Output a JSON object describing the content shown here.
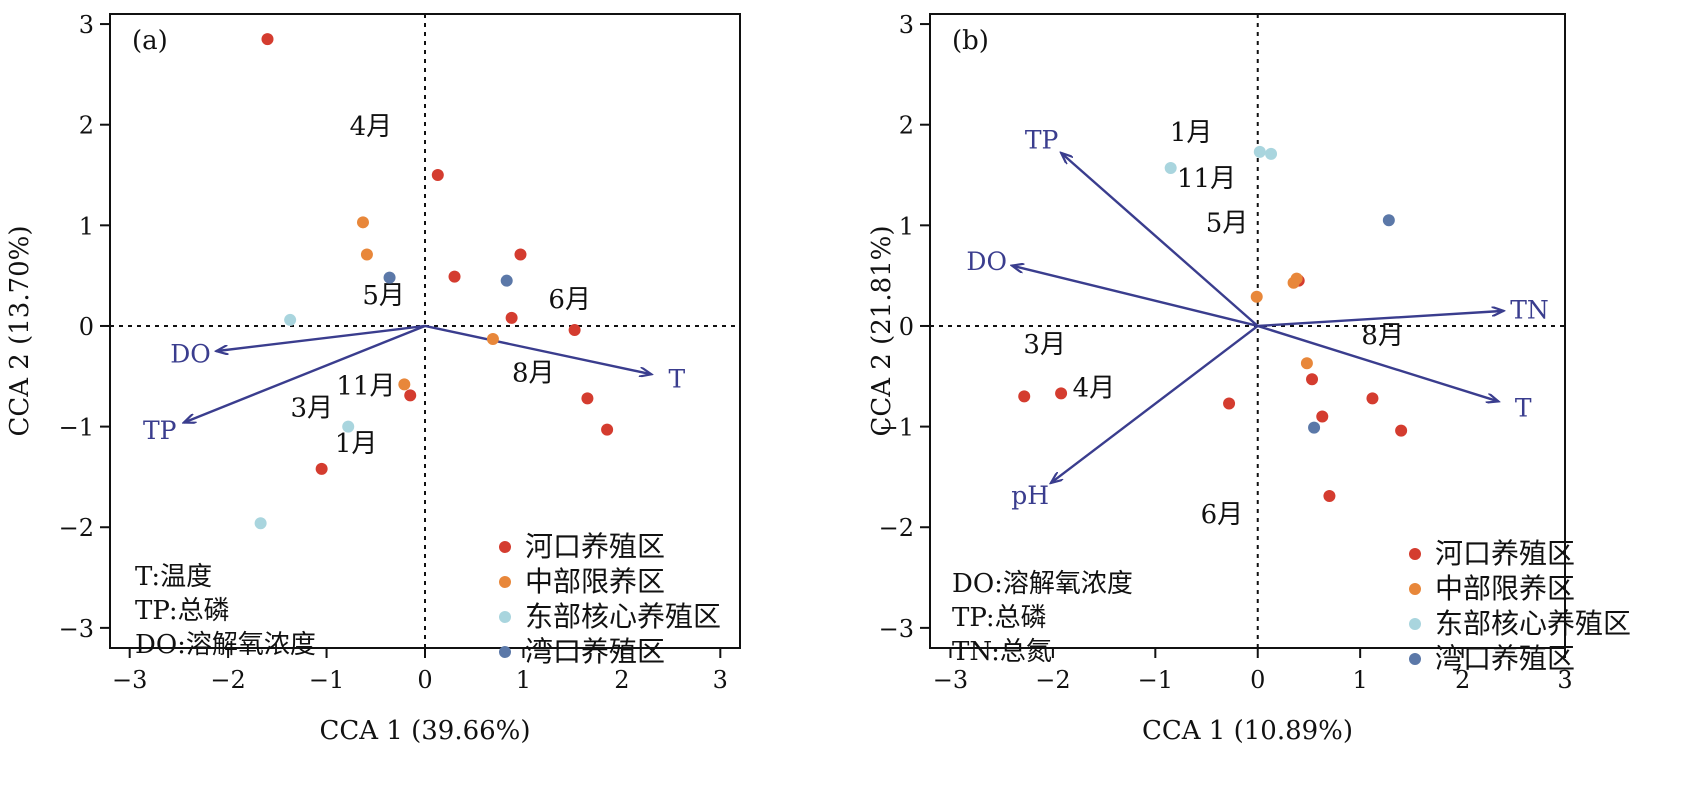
{
  "colors": {
    "河口养殖区": "#d43c2f",
    "中部限养区": "#e8873a",
    "东部核心养殖区": "#a9d5de",
    "湾口养殖区": "#5b78a8",
    "arrow": "#3a3d8e"
  },
  "chart_data": [
    {
      "type": "scatter",
      "panel_label": "(a)",
      "xlabel": "CCA 1 (39.66%)",
      "ylabel": "CCA 2 (13.70%)",
      "xlim": [
        -3.2,
        3.2
      ],
      "ylim": [
        -3.2,
        3.1
      ],
      "xticks": [
        -3,
        -2,
        -1,
        0,
        1,
        2,
        3
      ],
      "yticks": [
        -3,
        -2,
        -1,
        0,
        1,
        2,
        3
      ],
      "tick_labels": [
        "−3",
        "−2",
        "−1",
        "0",
        "1",
        "2",
        "3"
      ],
      "series": [
        {
          "name": "河口养殖区",
          "x": [
            -1.6,
            0.13,
            0.3,
            0.97,
            0.88,
            1.52,
            -0.15,
            1.65,
            1.85,
            -1.05
          ],
          "y": [
            2.85,
            1.5,
            0.49,
            0.71,
            0.08,
            -0.04,
            -0.69,
            -0.72,
            -1.03,
            -1.42
          ]
        },
        {
          "name": "中部限养区",
          "x": [
            -0.63,
            -0.59,
            0.69,
            -0.21
          ],
          "y": [
            1.03,
            0.71,
            -0.13,
            -0.58
          ]
        },
        {
          "name": "东部核心养殖区",
          "x": [
            -1.37,
            -0.78,
            -1.67
          ],
          "y": [
            0.06,
            -1.0,
            -1.96
          ]
        },
        {
          "name": "湾口养殖区",
          "x": [
            -0.36,
            0.83
          ],
          "y": [
            0.48,
            0.45
          ]
        }
      ],
      "vectors": [
        {
          "label": "DO",
          "x": -2.12,
          "y": -0.25
        },
        {
          "label": "TP",
          "x": -2.45,
          "y": -0.96
        },
        {
          "label": "T",
          "x": 2.3,
          "y": -0.48
        }
      ],
      "month_labels": [
        {
          "text": "4月",
          "x": -0.55,
          "y": 1.9
        },
        {
          "text": "5月",
          "x": -0.42,
          "y": 0.22
        },
        {
          "text": "6月",
          "x": 1.47,
          "y": 0.18
        },
        {
          "text": "8月",
          "x": 1.1,
          "y": -0.55
        },
        {
          "text": "11月",
          "x": -0.6,
          "y": -0.68
        },
        {
          "text": "3月",
          "x": -1.15,
          "y": -0.9
        },
        {
          "text": "1月",
          "x": -0.7,
          "y": -1.25
        }
      ],
      "legend": [
        "河口养殖区",
        "中部限养区",
        "东部核心养殖区",
        "湾口养殖区"
      ],
      "notes": [
        "T:温度",
        "TP:总磷",
        "DO:溶解氧浓度"
      ]
    },
    {
      "type": "scatter",
      "panel_label": "(b)",
      "xlabel": "CCA 1 (10.89%)",
      "ylabel": "CCA 2 (21.81%)",
      "xlim": [
        -3.2,
        3.0
      ],
      "ylim": [
        -3.2,
        3.1
      ],
      "xticks": [
        -3,
        -2,
        -1,
        0,
        1,
        2,
        3
      ],
      "yticks": [
        -3,
        -2,
        -1,
        0,
        1,
        2,
        3
      ],
      "tick_labels": [
        "−3",
        "−2",
        "−1",
        "0",
        "1",
        "2",
        "3"
      ],
      "series": [
        {
          "name": "河口养殖区",
          "x": [
            0.4,
            0.53,
            -2.28,
            -1.92,
            -0.28,
            1.12,
            1.4,
            0.63,
            0.7
          ],
          "y": [
            0.45,
            -0.53,
            -0.7,
            -0.67,
            -0.77,
            -0.72,
            -1.04,
            -0.9,
            -1.69
          ]
        },
        {
          "name": "中部限养区",
          "x": [
            0.35,
            0.38,
            -0.01,
            0.48
          ],
          "y": [
            0.43,
            0.47,
            0.29,
            -0.37
          ]
        },
        {
          "name": "东部核心养殖区",
          "x": [
            -0.85,
            0.02,
            0.13
          ],
          "y": [
            1.57,
            1.73,
            1.71
          ]
        },
        {
          "name": "湾口养殖区",
          "x": [
            1.28,
            0.55
          ],
          "y": [
            1.05,
            -1.01
          ]
        }
      ],
      "vectors": [
        {
          "label": "TP",
          "x": -1.92,
          "y": 1.72
        },
        {
          "label": "DO",
          "x": -2.4,
          "y": 0.6
        },
        {
          "label": "TN",
          "x": 2.4,
          "y": 0.15
        },
        {
          "label": "T",
          "x": 2.35,
          "y": -0.75
        },
        {
          "label": "pH",
          "x": -2.02,
          "y": -1.56
        }
      ],
      "month_labels": [
        {
          "text": "1月",
          "x": -0.65,
          "y": 1.84
        },
        {
          "text": "11月",
          "x": -0.5,
          "y": 1.38
        },
        {
          "text": "5月",
          "x": -0.3,
          "y": 0.94
        },
        {
          "text": "3月",
          "x": -2.08,
          "y": -0.27
        },
        {
          "text": "4月",
          "x": -1.6,
          "y": -0.7
        },
        {
          "text": "8月",
          "x": 1.22,
          "y": -0.18
        },
        {
          "text": "6月",
          "x": -0.35,
          "y": -1.96
        }
      ],
      "legend": [
        "河口养殖区",
        "中部限养区",
        "东部核心养殖区",
        "湾口养殖区"
      ],
      "notes": [
        "DO:溶解氧浓度",
        "TP:总磷",
        "TN:总氮"
      ]
    }
  ]
}
